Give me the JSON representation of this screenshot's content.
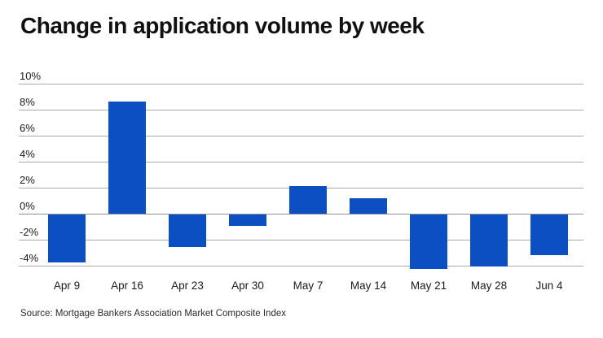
{
  "page": {
    "title": "Change in application volume by week",
    "source": "Source: Mortgage Bankers Association Market Composite Index"
  },
  "chart_data": {
    "type": "bar",
    "title": "Change in application volume by week",
    "categories": [
      "Apr 9",
      "Apr 16",
      "Apr 23",
      "Apr 30",
      "May 7",
      "May 14",
      "May 21",
      "May 28",
      "Jun 4"
    ],
    "values": [
      -3.7,
      8.6,
      -2.5,
      -0.9,
      2.1,
      1.2,
      -4.2,
      -4.0,
      -3.1
    ],
    "unit": "%",
    "xlabel": "",
    "ylabel": "",
    "ylim": [
      -4.5,
      10
    ],
    "yticks": [
      10,
      8,
      6,
      4,
      2,
      0,
      -2,
      -4
    ],
    "ytick_suffix": "%",
    "grid": true,
    "legend_position": "none",
    "colors": {
      "bar": "#0b4fc3",
      "grid": "#a9a9a9",
      "zero_line": "#8e8e8e",
      "title_text": "#111111",
      "axis_text": "#1a1a1a",
      "source_text": "#2b2b2b",
      "background": "#ffffff"
    }
  }
}
